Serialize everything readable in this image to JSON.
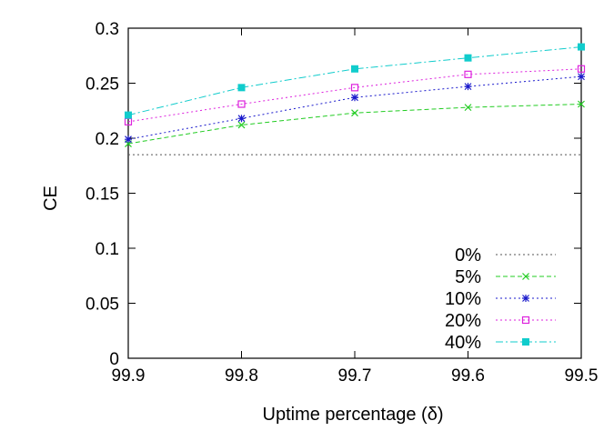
{
  "chart_data": {
    "type": "line",
    "title": "",
    "xlabel": "Uptime percentage (δ)",
    "ylabel": "CE",
    "x": [
      99.9,
      99.8,
      99.7,
      99.6,
      99.5
    ],
    "x_tick_labels": [
      "99.9",
      "99.8",
      "99.7",
      "99.6",
      "99.5"
    ],
    "xlim": [
      99.9,
      99.5
    ],
    "x_reversed": true,
    "ylim": [
      0,
      0.3
    ],
    "y_ticks": [
      0,
      0.05,
      0.1,
      0.15,
      0.2,
      0.25,
      0.3
    ],
    "y_tick_labels": [
      "0",
      "0.05",
      "0.1",
      "0.15",
      "0.2",
      "0.25",
      "0.3"
    ],
    "grid": false,
    "legend_position": "bottom-right",
    "series": [
      {
        "name": "0%",
        "color": "#555555",
        "marker": "none",
        "dash": "dotted",
        "values": [
          0.185,
          0.185,
          0.185,
          0.185,
          0.185
        ]
      },
      {
        "name": "5%",
        "color": "#22cc22",
        "marker": "x",
        "dash": "dashed",
        "values": [
          0.195,
          0.212,
          0.223,
          0.228,
          0.231
        ]
      },
      {
        "name": "10%",
        "color": "#1a1acc",
        "marker": "star",
        "dash": "dotted",
        "values": [
          0.199,
          0.218,
          0.237,
          0.247,
          0.256
        ]
      },
      {
        "name": "20%",
        "color": "#dd22dd",
        "marker": "square",
        "dash": "dotted",
        "values": [
          0.215,
          0.231,
          0.246,
          0.258,
          0.263
        ]
      },
      {
        "name": "40%",
        "color": "#11cccc",
        "marker": "filled-square",
        "dash": "dashdot",
        "values": [
          0.221,
          0.246,
          0.263,
          0.273,
          0.283
        ]
      }
    ]
  }
}
